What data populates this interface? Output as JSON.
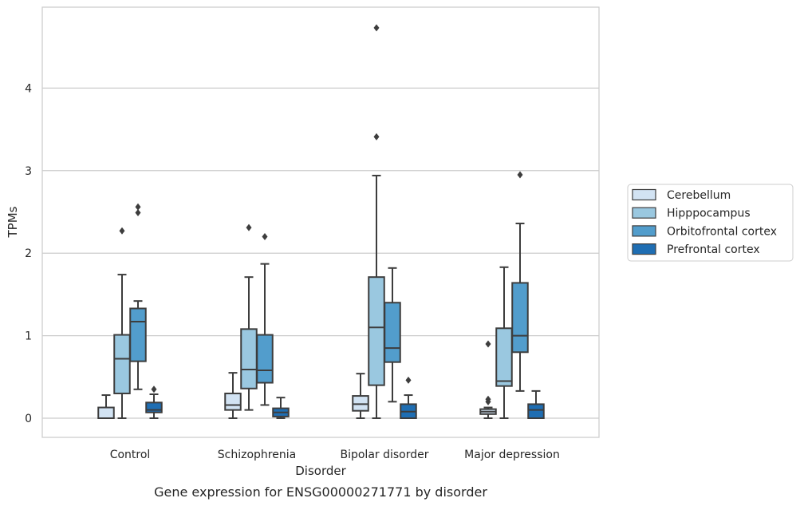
{
  "chart_data": {
    "type": "box",
    "ylabel": "TPMs",
    "xlabel": "Disorder",
    "caption": "Gene expression for ENSG00000271771 by disorder",
    "ylim": [
      -0.23,
      5.0
    ],
    "yticks": [
      0,
      1,
      2,
      3,
      4
    ],
    "grid": true,
    "legend_position": "right",
    "categories": [
      "Control",
      "Schizophrenia",
      "Bipolar disorder",
      "Major depression"
    ],
    "series": [
      {
        "name": "Cerebellum",
        "color": "#d2e3f3",
        "boxes": [
          {
            "whisker_low": 0.0,
            "q1": 0.0,
            "median": 0.0,
            "q3": 0.13,
            "whisker_high": 0.28,
            "outliers": []
          },
          {
            "whisker_low": 0.0,
            "q1": 0.1,
            "median": 0.16,
            "q3": 0.3,
            "whisker_high": 0.55,
            "outliers": []
          },
          {
            "whisker_low": 0.0,
            "q1": 0.09,
            "median": 0.17,
            "q3": 0.27,
            "whisker_high": 0.54,
            "outliers": []
          },
          {
            "whisker_low": 0.0,
            "q1": 0.05,
            "median": 0.08,
            "q3": 0.11,
            "whisker_high": 0.13,
            "outliers": [
              0.2,
              0.23,
              0.9
            ]
          }
        ]
      },
      {
        "name": "Hipppocampus",
        "color": "#9ac8e0",
        "boxes": [
          {
            "whisker_low": 0.0,
            "q1": 0.3,
            "median": 0.72,
            "q3": 1.01,
            "whisker_high": 1.74,
            "outliers": [
              2.27
            ]
          },
          {
            "whisker_low": 0.1,
            "q1": 0.36,
            "median": 0.59,
            "q3": 1.08,
            "whisker_high": 1.71,
            "outliers": [
              2.31
            ]
          },
          {
            "whisker_low": 0.0,
            "q1": 0.4,
            "median": 1.1,
            "q3": 1.71,
            "whisker_high": 2.94,
            "outliers": [
              3.41,
              4.73
            ]
          },
          {
            "whisker_low": 0.0,
            "q1": 0.39,
            "median": 0.45,
            "q3": 1.09,
            "whisker_high": 1.83,
            "outliers": []
          }
        ]
      },
      {
        "name": "Orbitofrontal cortex",
        "color": "#529dcc",
        "boxes": [
          {
            "whisker_low": 0.35,
            "q1": 0.69,
            "median": 1.17,
            "q3": 1.33,
            "whisker_high": 1.42,
            "outliers": [
              2.49,
              2.56
            ]
          },
          {
            "whisker_low": 0.16,
            "q1": 0.43,
            "median": 0.58,
            "q3": 1.01,
            "whisker_high": 1.87,
            "outliers": [
              2.2
            ]
          },
          {
            "whisker_low": 0.2,
            "q1": 0.68,
            "median": 0.85,
            "q3": 1.4,
            "whisker_high": 1.82,
            "outliers": []
          },
          {
            "whisker_low": 0.33,
            "q1": 0.8,
            "median": 1.0,
            "q3": 1.64,
            "whisker_high": 2.36,
            "outliers": [
              2.95
            ]
          }
        ]
      },
      {
        "name": "Prefrontal cortex",
        "color": "#1f6eb3",
        "boxes": [
          {
            "whisker_low": 0.0,
            "q1": 0.07,
            "median": 0.1,
            "q3": 0.19,
            "whisker_high": 0.29,
            "outliers": [
              0.35
            ]
          },
          {
            "whisker_low": 0.0,
            "q1": 0.02,
            "median": 0.07,
            "q3": 0.12,
            "whisker_high": 0.25,
            "outliers": []
          },
          {
            "whisker_low": 0.0,
            "q1": 0.0,
            "median": 0.08,
            "q3": 0.17,
            "whisker_high": 0.28,
            "outliers": [
              0.46
            ]
          },
          {
            "whisker_low": 0.0,
            "q1": 0.0,
            "median": 0.1,
            "q3": 0.17,
            "whisker_high": 0.33,
            "outliers": []
          }
        ]
      }
    ]
  }
}
